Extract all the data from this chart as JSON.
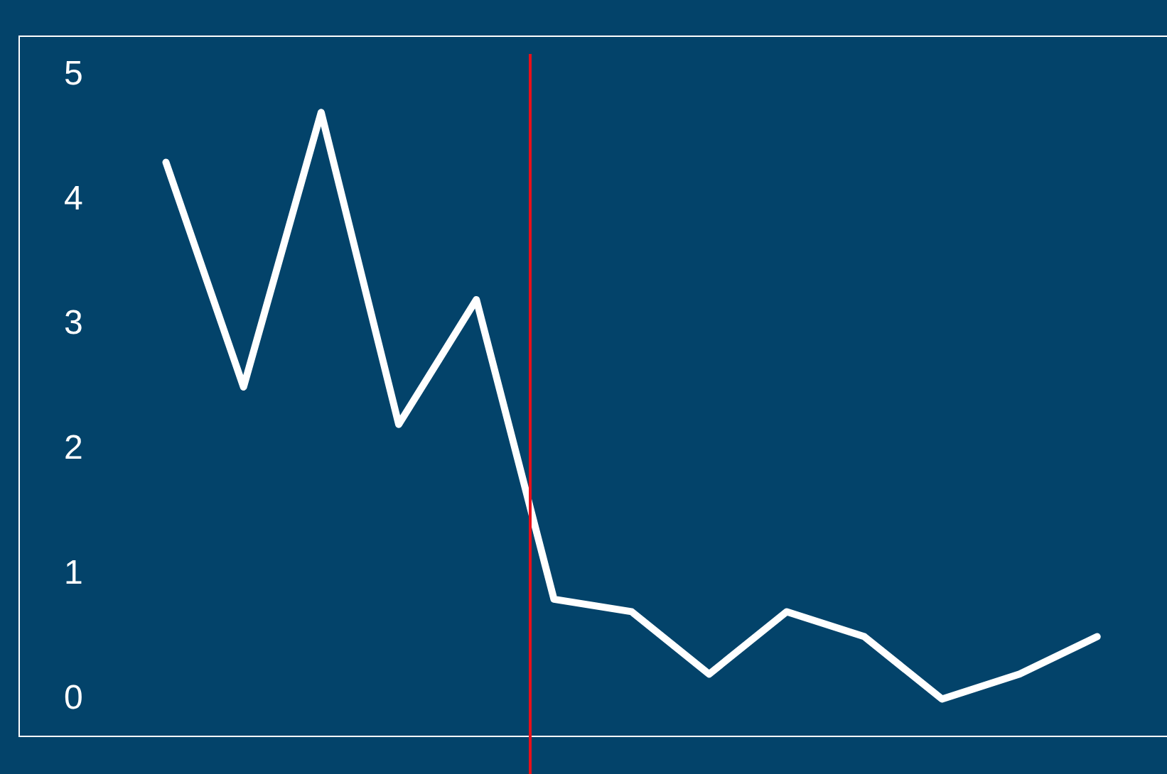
{
  "chart_data": {
    "type": "line",
    "categories": [
      null,
      null,
      null,
      null,
      null,
      null,
      null,
      null,
      null,
      null,
      null,
      null,
      null
    ],
    "series": [
      {
        "color": "#ffffff",
        "values": [
          4.3,
          2.5,
          4.7,
          2.2,
          3.2,
          0.8,
          0.7,
          0.2,
          0.7,
          0.5,
          0.0,
          0.2,
          0.5
        ]
      }
    ],
    "ylim": [
      -0.3,
      5.3
    ],
    "yticks": [
      0,
      1,
      2,
      3,
      4,
      5
    ],
    "tick_labels": "y",
    "grid": false,
    "legend": false,
    "marker": "none",
    "line_style": "solid"
  }
}
